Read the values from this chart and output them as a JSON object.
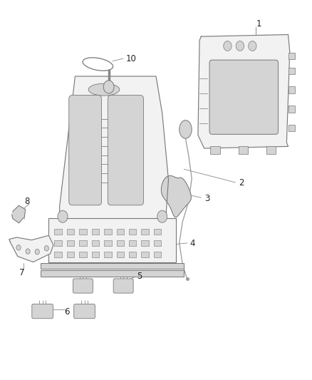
{
  "background_color": "#ffffff",
  "fig_width": 4.38,
  "fig_height": 5.33,
  "dpi": 100,
  "line_color": "#666666",
  "text_color": "#222222",
  "part_edge": "#777777",
  "part_fill": "#e8e8e8",
  "part_fill2": "#d4d4d4",
  "part_fill3": "#f2f2f2",
  "leader_color": "#888888",
  "leader_lw": 0.6,
  "part_lw": 0.8,
  "label_fontsize": 8.5
}
